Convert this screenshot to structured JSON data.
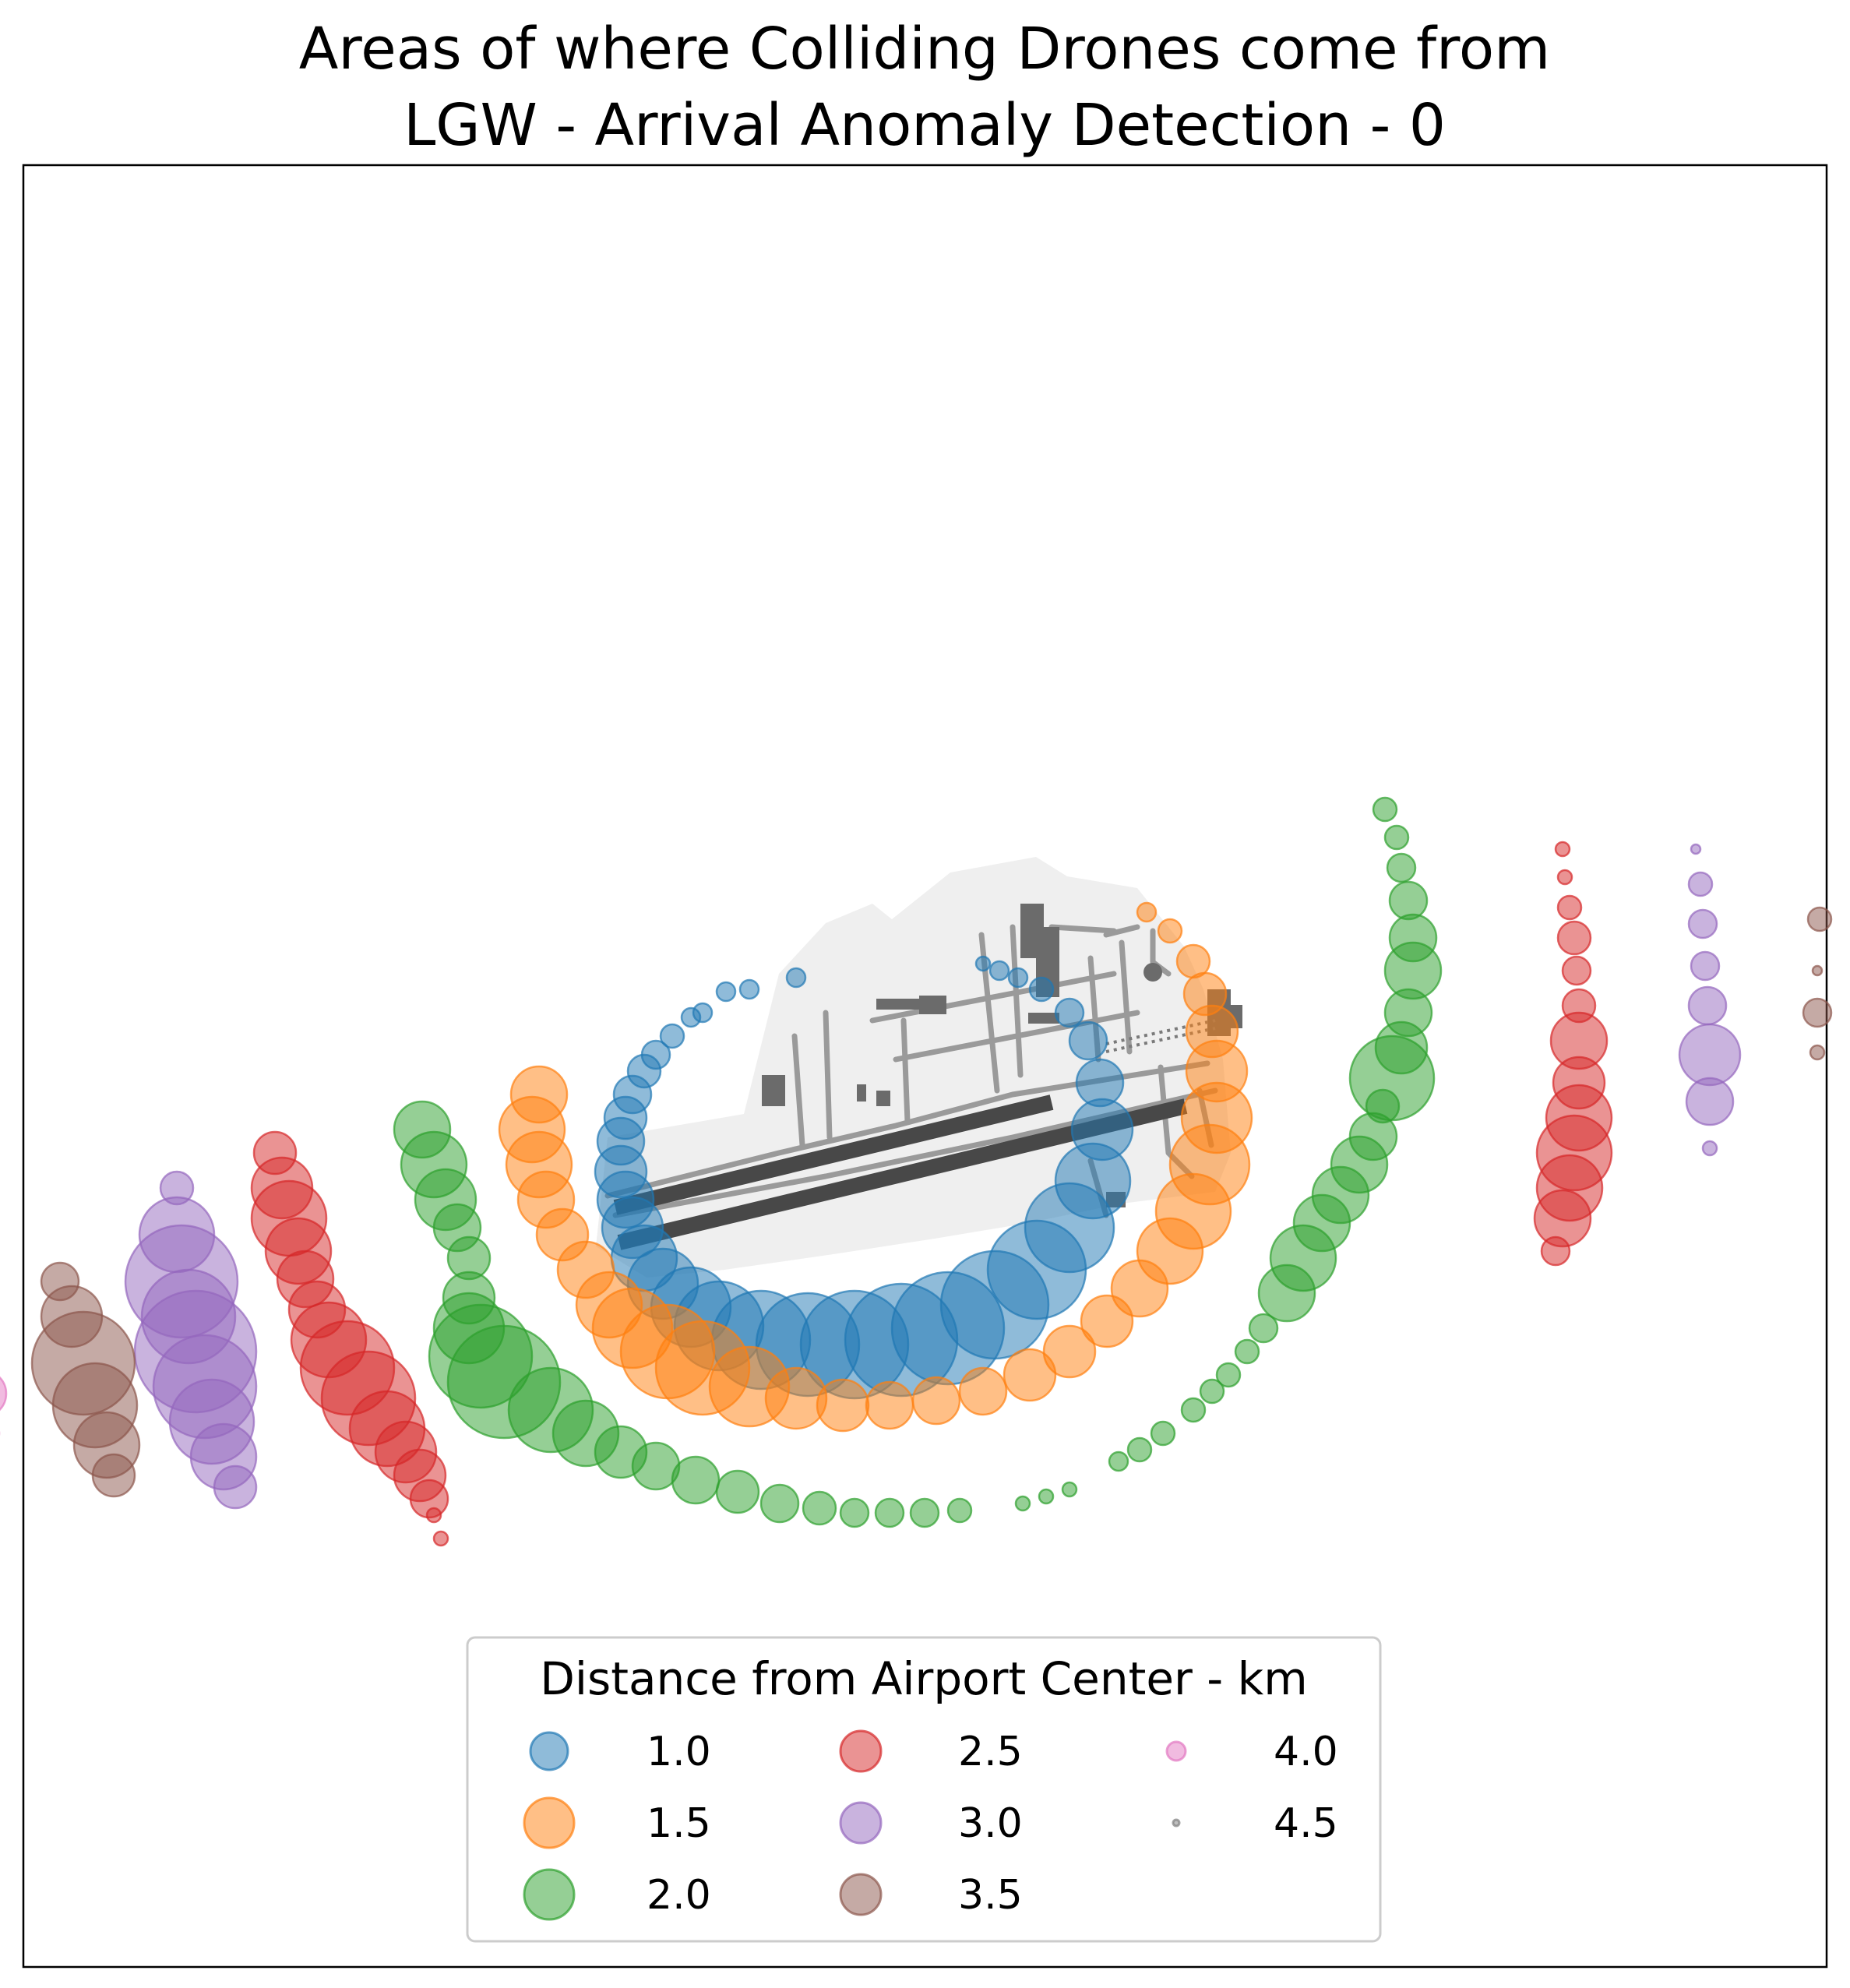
{
  "chart_data": {
    "type": "scatter",
    "title_line1": "Areas of where Colliding Drones come from",
    "title_line2": "LGW - Arrival Anomaly Detection - 0",
    "xlabel": "",
    "ylabel": "",
    "grid": false,
    "axes_ticks": false,
    "legend": {
      "title": "Distance from Airport Center - km",
      "placement": "bottom-center",
      "columns": 3
    },
    "colors": {
      "1.0": "#1f77b4",
      "1.5": "#ff7f0e",
      "2.0": "#2ca02c",
      "2.5": "#d62728",
      "3.0": "#9467bd",
      "3.5": "#8c564b",
      "4.0": "#e377c2",
      "4.5": "#7f7f7f"
    },
    "series": [
      {
        "name": "1.0",
        "distance_km": 1.0,
        "points": [
          [
            -0.55,
            0.45,
            4
          ],
          [
            -0.75,
            0.4,
            4
          ],
          [
            -0.85,
            0.39,
            4
          ],
          [
            -0.95,
            0.3,
            4
          ],
          [
            -1.0,
            0.28,
            4
          ],
          [
            -1.08,
            0.2,
            5
          ],
          [
            -1.15,
            0.12,
            6
          ],
          [
            -1.2,
            0.05,
            7
          ],
          [
            -1.25,
            -0.05,
            8
          ],
          [
            -1.28,
            -0.15,
            9
          ],
          [
            -1.3,
            -0.25,
            10
          ],
          [
            -1.3,
            -0.38,
            11
          ],
          [
            -1.28,
            -0.5,
            12
          ],
          [
            -1.25,
            -0.62,
            13
          ],
          [
            -1.2,
            -0.75,
            14
          ],
          [
            -1.12,
            -0.86,
            15
          ],
          [
            -1.0,
            -0.96,
            17
          ],
          [
            -0.88,
            -1.04,
            19
          ],
          [
            -0.7,
            -1.1,
            21
          ],
          [
            -0.5,
            -1.12,
            22
          ],
          [
            -0.3,
            -1.12,
            23
          ],
          [
            -0.1,
            -1.1,
            24
          ],
          [
            0.1,
            -1.05,
            24
          ],
          [
            0.3,
            -0.95,
            23
          ],
          [
            0.48,
            -0.8,
            21
          ],
          [
            0.62,
            -0.62,
            19
          ],
          [
            0.72,
            -0.42,
            16
          ],
          [
            0.76,
            -0.2,
            13
          ],
          [
            0.75,
            0.0,
            10
          ],
          [
            0.7,
            0.18,
            8
          ],
          [
            0.62,
            0.3,
            6
          ],
          [
            0.5,
            0.4,
            5
          ],
          [
            0.4,
            0.45,
            4
          ],
          [
            0.32,
            0.48,
            4
          ],
          [
            0.25,
            0.51,
            3
          ]
        ]
      },
      {
        "name": "1.5",
        "distance_km": 1.5,
        "points": [
          [
            -1.65,
            -0.05,
            12
          ],
          [
            -1.68,
            -0.2,
            14
          ],
          [
            -1.65,
            -0.35,
            14
          ],
          [
            -1.62,
            -0.5,
            12
          ],
          [
            -1.55,
            -0.65,
            11
          ],
          [
            -1.45,
            -0.8,
            12
          ],
          [
            -1.35,
            -0.95,
            14
          ],
          [
            -1.25,
            -1.05,
            17
          ],
          [
            -1.1,
            -1.15,
            20
          ],
          [
            -0.95,
            -1.22,
            20
          ],
          [
            -0.75,
            -1.3,
            17
          ],
          [
            -0.55,
            -1.35,
            13
          ],
          [
            -0.35,
            -1.38,
            11
          ],
          [
            -0.15,
            -1.38,
            10
          ],
          [
            0.05,
            -1.36,
            10
          ],
          [
            0.25,
            -1.32,
            10
          ],
          [
            0.45,
            -1.25,
            11
          ],
          [
            0.62,
            -1.15,
            11
          ],
          [
            0.78,
            -1.02,
            11
          ],
          [
            0.92,
            -0.88,
            12
          ],
          [
            1.05,
            -0.72,
            14
          ],
          [
            1.15,
            -0.55,
            16
          ],
          [
            1.22,
            -0.35,
            17
          ],
          [
            1.25,
            -0.15,
            15
          ],
          [
            1.25,
            0.05,
            13
          ],
          [
            1.23,
            0.22,
            11
          ],
          [
            1.2,
            0.38,
            9
          ],
          [
            1.15,
            0.52,
            7
          ],
          [
            1.05,
            0.65,
            5
          ],
          [
            0.95,
            0.73,
            4
          ]
        ]
      },
      {
        "name": "2.0",
        "distance_km": 2.0,
        "points": [
          [
            -2.15,
            -0.2,
            12
          ],
          [
            -2.1,
            -0.35,
            14
          ],
          [
            -2.05,
            -0.5,
            13
          ],
          [
            -2.0,
            -0.62,
            10
          ],
          [
            -1.95,
            -0.75,
            9
          ],
          [
            -1.95,
            -0.92,
            11
          ],
          [
            -1.95,
            -1.05,
            15
          ],
          [
            -1.9,
            -1.17,
            22
          ],
          [
            -1.8,
            -1.28,
            24
          ],
          [
            -1.6,
            -1.4,
            18
          ],
          [
            -1.45,
            -1.5,
            14
          ],
          [
            -1.3,
            -1.58,
            11
          ],
          [
            -1.15,
            -1.64,
            10
          ],
          [
            -0.98,
            -1.7,
            10
          ],
          [
            -0.8,
            -1.75,
            9
          ],
          [
            -0.62,
            -1.8,
            8
          ],
          [
            -0.45,
            -1.82,
            7
          ],
          [
            -0.3,
            -1.84,
            6
          ],
          [
            -0.15,
            -1.84,
            6
          ],
          [
            0.0,
            -1.84,
            6
          ],
          [
            0.15,
            -1.83,
            5
          ],
          [
            0.42,
            -1.8,
            3
          ],
          [
            0.52,
            -1.77,
            3
          ],
          [
            0.62,
            -1.74,
            3
          ],
          [
            0.83,
            -1.62,
            4
          ],
          [
            0.92,
            -1.57,
            5
          ],
          [
            1.02,
            -1.5,
            5
          ],
          [
            1.15,
            -1.4,
            5
          ],
          [
            1.23,
            -1.32,
            5
          ],
          [
            1.3,
            -1.25,
            5
          ],
          [
            1.38,
            -1.15,
            5
          ],
          [
            1.45,
            -1.05,
            6
          ],
          [
            1.55,
            -0.9,
            12
          ],
          [
            1.62,
            -0.75,
            14
          ],
          [
            1.7,
            -0.6,
            12
          ],
          [
            1.78,
            -0.48,
            12
          ],
          [
            1.86,
            -0.35,
            12
          ],
          [
            1.92,
            -0.23,
            10
          ],
          [
            1.96,
            -0.1,
            7
          ],
          [
            2.0,
            0.02,
            18
          ],
          [
            2.04,
            0.15,
            11
          ],
          [
            2.07,
            0.3,
            10
          ],
          [
            2.09,
            0.48,
            12
          ],
          [
            2.09,
            0.62,
            10
          ],
          [
            2.07,
            0.78,
            8
          ],
          [
            2.04,
            0.92,
            6
          ],
          [
            2.02,
            1.05,
            5
          ],
          [
            1.97,
            1.17,
            5
          ]
        ]
      },
      {
        "name": "2.5",
        "distance_km": 2.5,
        "points": [
          [
            -2.78,
            -0.3,
            9
          ],
          [
            -2.75,
            -0.45,
            13
          ],
          [
            -2.72,
            -0.58,
            16
          ],
          [
            -2.68,
            -0.72,
            14
          ],
          [
            -2.65,
            -0.84,
            12
          ],
          [
            -2.6,
            -0.97,
            12
          ],
          [
            -2.55,
            -1.1,
            16
          ],
          [
            -2.47,
            -1.22,
            20
          ],
          [
            -2.38,
            -1.35,
            20
          ],
          [
            -2.3,
            -1.48,
            16
          ],
          [
            -2.22,
            -1.58,
            13
          ],
          [
            -2.16,
            -1.68,
            11
          ],
          [
            -2.12,
            -1.78,
            8
          ],
          [
            -2.1,
            -1.85,
            3
          ],
          [
            -2.07,
            -1.95,
            3
          ],
          [
            2.73,
            1.0,
            3
          ],
          [
            2.74,
            0.88,
            3
          ],
          [
            2.76,
            0.75,
            5
          ],
          [
            2.78,
            0.62,
            7
          ],
          [
            2.79,
            0.48,
            6
          ],
          [
            2.8,
            0.33,
            7
          ],
          [
            2.8,
            0.18,
            12
          ],
          [
            2.8,
            0.0,
            11
          ],
          [
            2.8,
            -0.15,
            14
          ],
          [
            2.78,
            -0.3,
            16
          ],
          [
            2.76,
            -0.45,
            14
          ],
          [
            2.73,
            -0.58,
            12
          ],
          [
            2.7,
            -0.72,
            6
          ]
        ]
      },
      {
        "name": "3.0",
        "distance_km": 3.0,
        "points": [
          [
            -3.2,
            -0.45,
            7
          ],
          [
            -3.2,
            -0.65,
            16
          ],
          [
            -3.18,
            -0.85,
            24
          ],
          [
            -3.15,
            -1.0,
            20
          ],
          [
            -3.12,
            -1.15,
            26
          ],
          [
            -3.08,
            -1.3,
            22
          ],
          [
            -3.05,
            -1.45,
            18
          ],
          [
            -3.0,
            -1.6,
            14
          ],
          [
            -2.95,
            -1.73,
            9
          ],
          [
            3.3,
            1.0,
            2
          ],
          [
            3.32,
            0.85,
            5
          ],
          [
            3.33,
            0.68,
            6
          ],
          [
            3.34,
            0.5,
            6
          ],
          [
            3.35,
            0.33,
            8
          ],
          [
            3.36,
            0.12,
            13
          ],
          [
            3.36,
            -0.08,
            10
          ],
          [
            3.36,
            -0.28,
            3
          ]
        ]
      },
      {
        "name": "3.5",
        "distance_km": 3.5,
        "points": [
          [
            -3.7,
            -0.85,
            8
          ],
          [
            -3.65,
            -1.0,
            13
          ],
          [
            -3.6,
            -1.2,
            22
          ],
          [
            -3.55,
            -1.38,
            18
          ],
          [
            -3.5,
            -1.55,
            14
          ],
          [
            -3.47,
            -1.68,
            9
          ],
          [
            3.83,
            0.7,
            5
          ],
          [
            3.82,
            0.48,
            2
          ],
          [
            3.82,
            0.3,
            6
          ],
          [
            3.82,
            0.13,
            3
          ]
        ]
      },
      {
        "name": "4.0",
        "distance_km": 4.0,
        "points": [
          [
            -4.05,
            -0.95,
            2
          ],
          [
            -4.05,
            -1.15,
            7
          ],
          [
            -4.03,
            -1.33,
            10
          ],
          [
            -4.02,
            -1.5,
            6
          ],
          [
            4.2,
            0.9,
            2
          ],
          [
            4.2,
            0.7,
            2
          ]
        ]
      },
      {
        "name": "4.5",
        "distance_km": 4.5,
        "points": [
          [
            -4.4,
            -1.4,
            2
          ]
        ]
      }
    ],
    "legend_entries": [
      {
        "label": "1.0",
        "series": "1.0"
      },
      {
        "label": "1.5",
        "series": "1.5"
      },
      {
        "label": "2.0",
        "series": "2.0"
      },
      {
        "label": "2.5",
        "series": "2.5"
      },
      {
        "label": "3.0",
        "series": "3.0"
      },
      {
        "label": "3.5",
        "series": "3.5"
      },
      {
        "label": "4.0",
        "series": "4.0"
      },
      {
        "label": "4.5",
        "series": "4.5"
      }
    ]
  }
}
